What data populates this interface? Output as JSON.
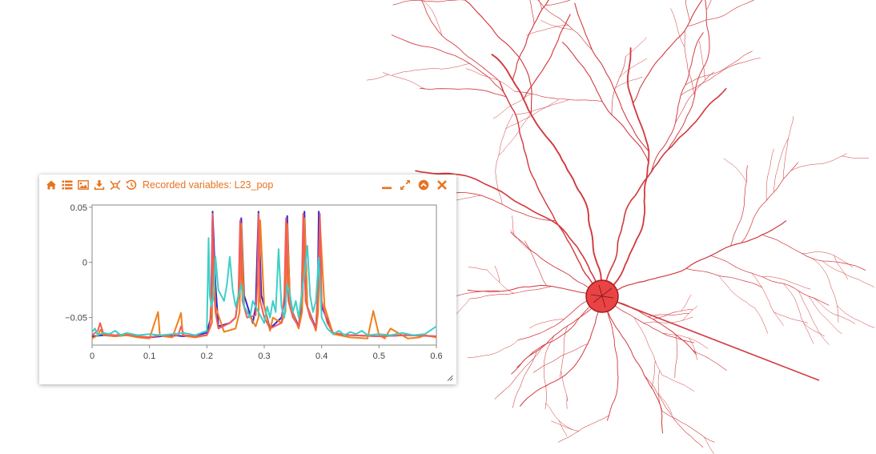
{
  "widget": {
    "title": "Recorded variables: L23_pop",
    "toolbar_icons": [
      "home-icon",
      "list-icon",
      "image-icon",
      "download-icon",
      "pan-icon",
      "history-icon"
    ],
    "window_icons": [
      "minimize-icon",
      "maximize-icon",
      "collapse-icon",
      "close-icon"
    ],
    "accent_color": "#e8731e"
  },
  "chart_data": {
    "type": "line",
    "xlim": [
      0,
      0.6
    ],
    "ylim": [
      -0.075,
      0.052
    ],
    "xticks": [
      "0",
      "0.1",
      "0.2",
      "0.3",
      "0.4",
      "0.5",
      "0.6"
    ],
    "yticks": [
      "0.05",
      "0",
      "−0.05"
    ],
    "title": "",
    "xlabel": "",
    "ylabel": "",
    "series": [
      {
        "color": "#2a2ad4",
        "x": [
          0,
          0.02,
          0.04,
          0.06,
          0.08,
          0.1,
          0.12,
          0.14,
          0.16,
          0.18,
          0.2,
          0.207,
          0.21,
          0.215,
          0.22,
          0.24,
          0.25,
          0.255,
          0.26,
          0.265,
          0.28,
          0.285,
          0.29,
          0.295,
          0.31,
          0.33,
          0.337,
          0.34,
          0.345,
          0.36,
          0.367,
          0.37,
          0.375,
          0.39,
          0.393,
          0.395,
          0.4,
          0.42,
          0.45,
          0.5,
          0.55,
          0.6
        ],
        "y": [
          -0.067,
          -0.066,
          -0.067,
          -0.066,
          -0.067,
          -0.068,
          -0.067,
          -0.066,
          -0.067,
          -0.066,
          -0.064,
          -0.05,
          0.046,
          -0.02,
          -0.058,
          -0.055,
          -0.05,
          -0.03,
          0.04,
          -0.03,
          -0.055,
          -0.04,
          0.046,
          -0.03,
          -0.06,
          -0.05,
          -0.03,
          0.042,
          -0.04,
          -0.058,
          -0.03,
          0.046,
          -0.04,
          -0.06,
          -0.03,
          0.046,
          -0.04,
          -0.065,
          -0.066,
          -0.067,
          -0.066,
          -0.067
        ]
      },
      {
        "color": "#f07f1a",
        "x": [
          0,
          0.01,
          0.015,
          0.02,
          0.04,
          0.06,
          0.08,
          0.1,
          0.115,
          0.118,
          0.125,
          0.14,
          0.155,
          0.158,
          0.165,
          0.18,
          0.2,
          0.205,
          0.209,
          0.21,
          0.215,
          0.23,
          0.25,
          0.257,
          0.26,
          0.265,
          0.285,
          0.29,
          0.293,
          0.3,
          0.31,
          0.315,
          0.33,
          0.337,
          0.34,
          0.345,
          0.36,
          0.366,
          0.37,
          0.375,
          0.39,
          0.394,
          0.397,
          0.405,
          0.42,
          0.45,
          0.48,
          0.49,
          0.5,
          0.51,
          0.52,
          0.55,
          0.57,
          0.58,
          0.6
        ],
        "y": [
          -0.069,
          -0.066,
          -0.061,
          -0.066,
          -0.067,
          -0.066,
          -0.068,
          -0.069,
          -0.045,
          -0.066,
          -0.067,
          -0.068,
          -0.046,
          -0.066,
          -0.067,
          -0.068,
          -0.066,
          -0.06,
          -0.055,
          0.03,
          -0.04,
          -0.063,
          -0.06,
          -0.045,
          0.035,
          -0.04,
          -0.058,
          -0.05,
          0.038,
          -0.04,
          -0.062,
          -0.05,
          -0.055,
          -0.045,
          0.035,
          -0.04,
          -0.06,
          -0.045,
          0.04,
          -0.04,
          -0.062,
          -0.045,
          0.038,
          -0.04,
          -0.065,
          -0.068,
          -0.069,
          -0.044,
          -0.066,
          -0.069,
          -0.06,
          -0.069,
          -0.068,
          -0.066,
          -0.068
        ]
      },
      {
        "color": "#f45b5b",
        "x": [
          0,
          0.01,
          0.014,
          0.02,
          0.04,
          0.06,
          0.08,
          0.1,
          0.12,
          0.14,
          0.15,
          0.155,
          0.16,
          0.18,
          0.2,
          0.205,
          0.208,
          0.21,
          0.212,
          0.215,
          0.22,
          0.24,
          0.25,
          0.255,
          0.258,
          0.262,
          0.27,
          0.285,
          0.288,
          0.29,
          0.293,
          0.3,
          0.31,
          0.33,
          0.335,
          0.338,
          0.342,
          0.35,
          0.36,
          0.365,
          0.368,
          0.372,
          0.38,
          0.39,
          0.394,
          0.397,
          0.4,
          0.41,
          0.42,
          0.45,
          0.5,
          0.55,
          0.6
        ],
        "y": [
          -0.066,
          -0.062,
          -0.055,
          -0.065,
          -0.066,
          -0.065,
          -0.067,
          -0.068,
          -0.066,
          -0.067,
          -0.066,
          -0.058,
          -0.066,
          -0.067,
          -0.066,
          -0.06,
          -0.03,
          0.044,
          -0.02,
          -0.045,
          -0.06,
          -0.055,
          -0.05,
          -0.03,
          0.038,
          -0.035,
          -0.05,
          -0.048,
          -0.02,
          0.044,
          -0.035,
          -0.05,
          -0.06,
          -0.055,
          -0.03,
          0.04,
          -0.035,
          -0.05,
          -0.058,
          -0.03,
          0.044,
          -0.035,
          -0.05,
          -0.06,
          -0.02,
          0.044,
          -0.035,
          -0.055,
          -0.064,
          -0.066,
          -0.067,
          -0.066,
          -0.067
        ]
      },
      {
        "color": "#3ecfc6",
        "x": [
          0,
          0.005,
          0.01,
          0.02,
          0.03,
          0.04,
          0.05,
          0.06,
          0.08,
          0.1,
          0.12,
          0.14,
          0.16,
          0.18,
          0.19,
          0.2,
          0.203,
          0.205,
          0.208,
          0.212,
          0.215,
          0.22,
          0.23,
          0.235,
          0.24,
          0.245,
          0.25,
          0.255,
          0.26,
          0.265,
          0.275,
          0.28,
          0.29,
          0.3,
          0.305,
          0.31,
          0.315,
          0.32,
          0.325,
          0.33,
          0.335,
          0.34,
          0.345,
          0.35,
          0.355,
          0.36,
          0.365,
          0.37,
          0.375,
          0.38,
          0.385,
          0.39,
          0.395,
          0.4,
          0.41,
          0.42,
          0.43,
          0.44,
          0.45,
          0.46,
          0.47,
          0.48,
          0.5,
          0.52,
          0.54,
          0.56,
          0.58,
          0.6
        ],
        "y": [
          -0.063,
          -0.06,
          -0.066,
          -0.064,
          -0.065,
          -0.062,
          -0.066,
          -0.064,
          -0.066,
          -0.065,
          -0.066,
          -0.065,
          -0.064,
          -0.066,
          -0.064,
          -0.062,
          0.022,
          -0.03,
          -0.04,
          -0.03,
          0.005,
          -0.025,
          -0.035,
          -0.02,
          0.005,
          -0.025,
          -0.04,
          -0.03,
          -0.02,
          -0.04,
          -0.05,
          -0.035,
          -0.045,
          -0.055,
          -0.04,
          -0.05,
          -0.035,
          -0.045,
          0.012,
          -0.04,
          -0.05,
          -0.02,
          -0.03,
          -0.045,
          -0.035,
          -0.05,
          -0.03,
          -0.01,
          0.015,
          -0.03,
          -0.045,
          -0.035,
          0.004,
          -0.05,
          -0.06,
          -0.065,
          -0.062,
          -0.066,
          -0.063,
          -0.065,
          -0.062,
          -0.066,
          -0.065,
          -0.066,
          -0.064,
          -0.066,
          -0.065,
          -0.058
        ]
      }
    ]
  }
}
